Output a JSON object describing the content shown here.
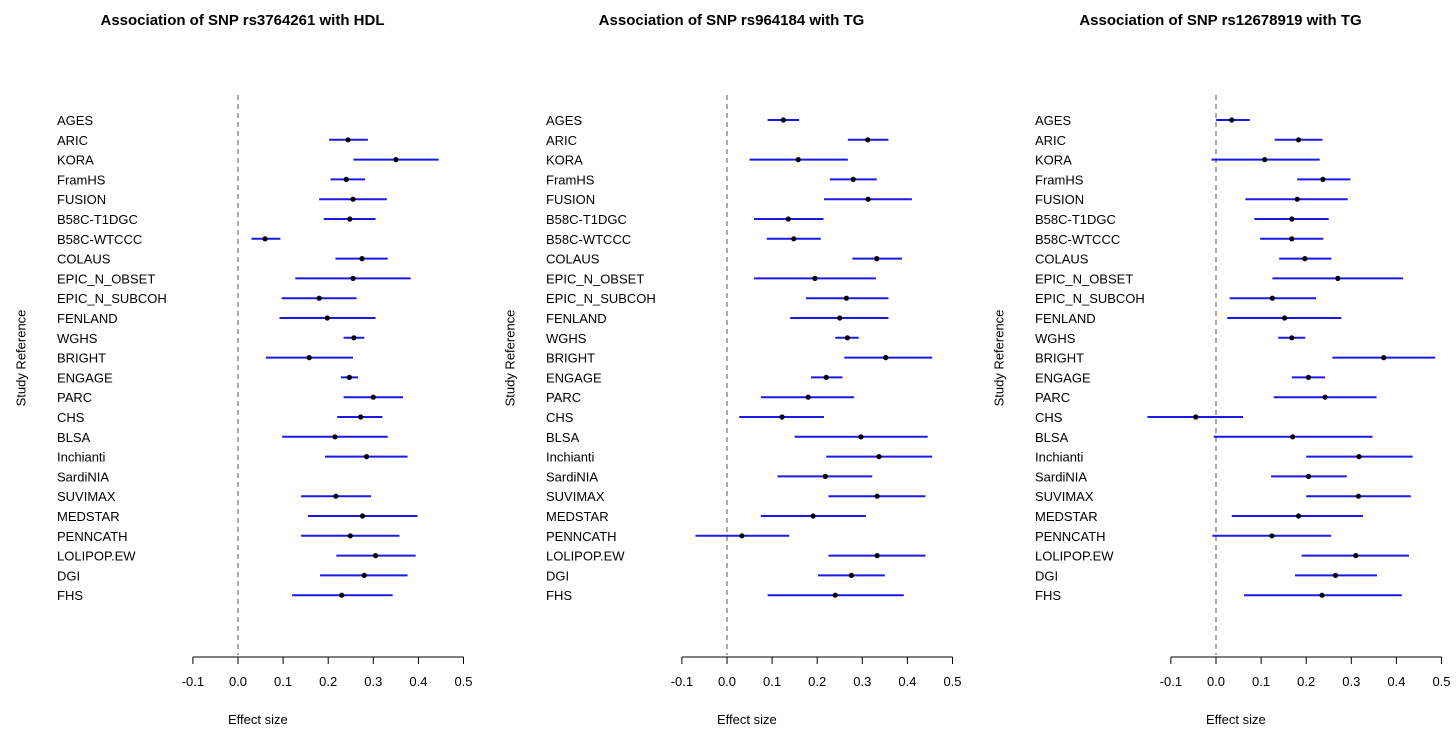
{
  "chart_data": [
    {
      "type": "forest",
      "title": "Association of SNP rs3764261 with HDL",
      "xlabel": "Effect size",
      "ylabel": "Study Reference",
      "xlim": [
        -0.1,
        0.5
      ],
      "x_ticks": [
        "-0.1",
        "0.0",
        "0.1",
        "0.2",
        "0.3",
        "0.4",
        "0.5"
      ],
      "reference_line": 0,
      "studies": [
        "AGES",
        "ARIC",
        "KORA",
        "FramHS",
        "FUSION",
        "B58C-T1DGC",
        "B58C-WTCCC",
        "COLAUS",
        "EPIC_N_OBSET",
        "EPIC_N_SUBCOH",
        "FENLAND",
        "WGHS",
        "BRIGHT",
        "ENGAGE",
        "PARC",
        "CHS",
        "BLSA",
        "Inchianti",
        "SardiNIA",
        "SUVIMAX",
        "MEDSTAR",
        "PENNCATH",
        "LOLIPOP.EW",
        "DGI",
        "FHS"
      ],
      "estimates": [
        null,
        0.244,
        0.35,
        0.24,
        0.255,
        0.248,
        0.06,
        0.275,
        0.255,
        0.18,
        0.198,
        0.257,
        0.158,
        0.247,
        0.3,
        0.272,
        0.215,
        0.285,
        null,
        0.217,
        0.276,
        0.249,
        0.305,
        0.28,
        0.23
      ],
      "lower": [
        null,
        0.202,
        0.256,
        0.205,
        0.18,
        0.19,
        0.03,
        0.216,
        0.127,
        0.097,
        0.092,
        0.234,
        0.062,
        0.228,
        0.234,
        0.22,
        0.098,
        0.193,
        null,
        0.14,
        0.155,
        0.14,
        0.218,
        0.182,
        0.12
      ],
      "upper": [
        null,
        0.288,
        0.445,
        0.282,
        0.33,
        0.305,
        0.094,
        0.332,
        0.383,
        0.263,
        0.305,
        0.28,
        0.255,
        0.266,
        0.366,
        0.32,
        0.332,
        0.376,
        null,
        0.295,
        0.398,
        0.358,
        0.394,
        0.376,
        0.343
      ]
    },
    {
      "type": "forest",
      "title": "Association of SNP rs964184 with TG",
      "xlabel": "Effect size",
      "ylabel": "Study Reference",
      "xlim": [
        -0.1,
        0.5
      ],
      "x_ticks": [
        "-0.1",
        "0.0",
        "0.1",
        "0.2",
        "0.3",
        "0.4",
        "0.5"
      ],
      "reference_line": 0,
      "studies": [
        "AGES",
        "ARIC",
        "KORA",
        "FramHS",
        "FUSION",
        "B58C-T1DGC",
        "B58C-WTCCC",
        "COLAUS",
        "EPIC_N_OBSET",
        "EPIC_N_SUBCOH",
        "FENLAND",
        "WGHS",
        "BRIGHT",
        "ENGAGE",
        "PARC",
        "CHS",
        "BLSA",
        "Inchianti",
        "SardiNIA",
        "SUVIMAX",
        "MEDSTAR",
        "PENNCATH",
        "LOLIPOP.EW",
        "DGI",
        "FHS"
      ],
      "estimates": [
        0.125,
        0.312,
        0.158,
        0.28,
        0.313,
        0.136,
        0.148,
        0.332,
        0.195,
        0.265,
        0.25,
        0.267,
        0.352,
        0.22,
        0.18,
        0.122,
        0.297,
        0.337,
        0.218,
        0.333,
        0.191,
        0.033,
        0.333,
        0.276,
        0.24
      ],
      "lower": [
        0.09,
        0.268,
        0.05,
        0.228,
        0.215,
        0.06,
        0.088,
        0.278,
        0.06,
        0.175,
        0.14,
        0.24,
        0.26,
        0.186,
        0.075,
        0.027,
        0.15,
        0.22,
        0.112,
        0.225,
        0.075,
        -0.07,
        0.225,
        0.202,
        0.09
      ],
      "upper": [
        0.16,
        0.358,
        0.268,
        0.332,
        0.41,
        0.214,
        0.208,
        0.388,
        0.33,
        0.358,
        0.358,
        0.292,
        0.455,
        0.256,
        0.282,
        0.215,
        0.445,
        0.455,
        0.322,
        0.44,
        0.308,
        0.138,
        0.44,
        0.35,
        0.392
      ]
    },
    {
      "type": "forest",
      "title": "Association of SNP rs12678919 with TG",
      "xlabel": "Effect size",
      "ylabel": "Study Reference",
      "xlim": [
        -0.1,
        0.5
      ],
      "x_ticks": [
        "-0.1",
        "0.0",
        "0.1",
        "0.2",
        "0.3",
        "0.4",
        "0.5"
      ],
      "reference_line": 0,
      "studies": [
        "AGES",
        "ARIC",
        "KORA",
        "FramHS",
        "FUSION",
        "B58C-T1DGC",
        "B58C-WTCCC",
        "COLAUS",
        "EPIC_N_OBSET",
        "EPIC_N_SUBCOH",
        "FENLAND",
        "WGHS",
        "BRIGHT",
        "ENGAGE",
        "PARC",
        "CHS",
        "BLSA",
        "Inchianti",
        "SardiNIA",
        "SUVIMAX",
        "MEDSTAR",
        "PENNCATH",
        "LOLIPOP.EW",
        "DGI",
        "FHS"
      ],
      "estimates": [
        0.035,
        0.183,
        0.108,
        0.237,
        0.18,
        0.168,
        0.168,
        0.197,
        0.27,
        0.125,
        0.152,
        0.168,
        0.372,
        0.205,
        0.242,
        -0.045,
        0.17,
        0.317,
        0.205,
        0.316,
        0.183,
        0.124,
        0.31,
        0.265,
        0.235
      ],
      "lower": [
        0.0,
        0.13,
        -0.01,
        0.18,
        0.065,
        0.085,
        0.098,
        0.14,
        0.125,
        0.03,
        0.025,
        0.138,
        0.258,
        0.168,
        0.128,
        -0.152,
        -0.005,
        0.2,
        0.122,
        0.2,
        0.035,
        -0.008,
        0.19,
        0.175,
        0.062
      ],
      "upper": [
        0.075,
        0.236,
        0.23,
        0.298,
        0.292,
        0.25,
        0.238,
        0.256,
        0.415,
        0.222,
        0.278,
        0.198,
        0.486,
        0.242,
        0.356,
        0.06,
        0.347,
        0.436,
        0.29,
        0.432,
        0.326,
        0.255,
        0.428,
        0.357,
        0.412
      ]
    }
  ]
}
